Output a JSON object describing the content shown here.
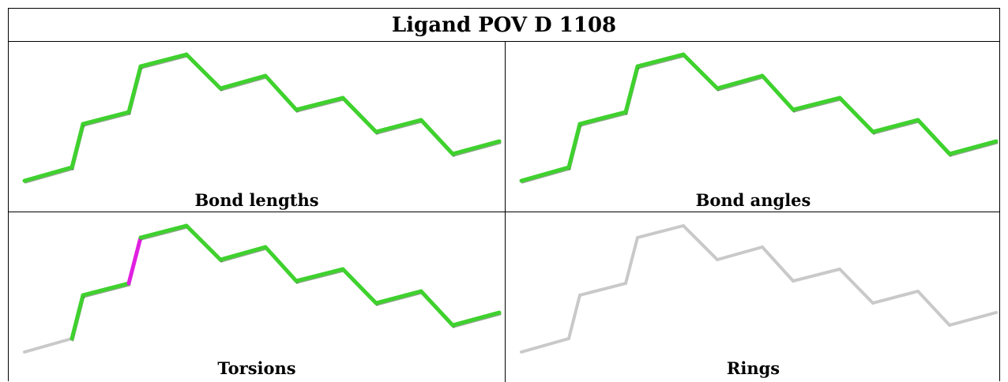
{
  "title": "Ligand POV D 1108",
  "colors": {
    "ok": "#3fd12e",
    "outlier": "#e020e0",
    "neutral": "#c9c9c9",
    "shadow": "#2f5f2a"
  },
  "panels": [
    {
      "label": "Bond lengths",
      "bond_colors": [
        "ok",
        "ok",
        "ok",
        "ok",
        "ok",
        "ok",
        "ok",
        "ok",
        "ok",
        "ok",
        "ok",
        "ok",
        "ok",
        "ok"
      ]
    },
    {
      "label": "Bond angles",
      "bond_colors": [
        "ok",
        "ok",
        "ok",
        "ok",
        "ok",
        "ok",
        "ok",
        "ok",
        "ok",
        "ok",
        "ok",
        "ok",
        "ok",
        "ok"
      ]
    },
    {
      "label": "Torsions",
      "bond_colors": [
        "neutral",
        "ok",
        "ok",
        "outlier",
        "ok",
        "ok",
        "ok",
        "ok",
        "ok",
        "ok",
        "ok",
        "ok",
        "ok",
        "neutral"
      ]
    },
    {
      "label": "Rings",
      "bond_colors": [
        "neutral",
        "neutral",
        "neutral",
        "neutral",
        "neutral",
        "neutral",
        "neutral",
        "neutral",
        "neutral",
        "neutral",
        "neutral",
        "neutral",
        "neutral",
        "neutral"
      ]
    }
  ]
}
